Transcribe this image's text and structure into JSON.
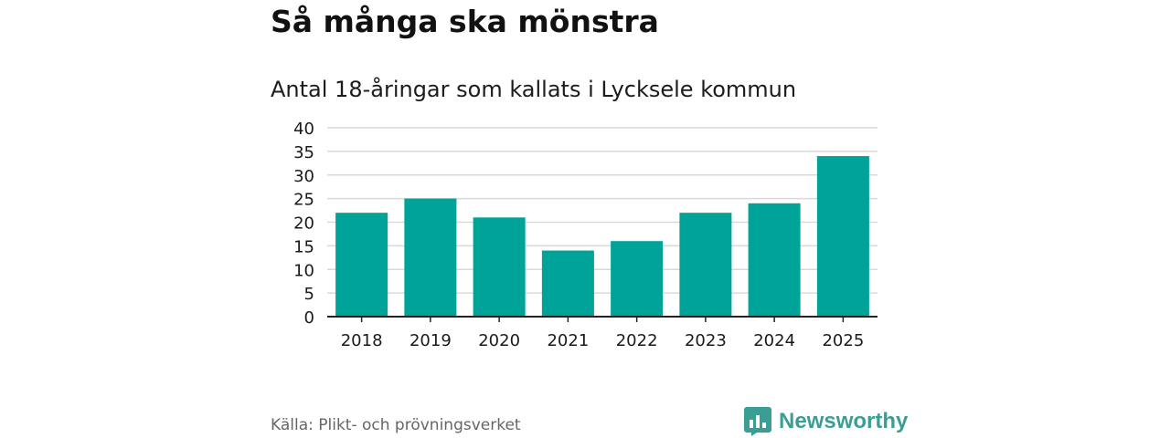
{
  "header": {
    "title": "Så många ska mönstra",
    "subtitle": "Antal 18-åringar som kallats i Lycksele kommun"
  },
  "footer": {
    "source": "Källa: Plikt- och prövningsverket",
    "brand": "Newsworthy"
  },
  "colors": {
    "bar": "#00a398",
    "grid": "#d9d9d9",
    "axis": "#222222",
    "brand": "#3a9e94"
  },
  "chart_data": {
    "type": "bar",
    "title": "Så många ska mönstra",
    "subtitle": "Antal 18-åringar som kallats i Lycksele kommun",
    "categories": [
      "2018",
      "2019",
      "2020",
      "2021",
      "2022",
      "2023",
      "2024",
      "2025"
    ],
    "values": [
      22,
      25,
      21,
      14,
      16,
      22,
      24,
      34
    ],
    "xlabel": "",
    "ylabel": "",
    "ylim": [
      0,
      40
    ],
    "yticks": [
      0,
      5,
      10,
      15,
      20,
      25,
      30,
      35,
      40
    ],
    "grid": true,
    "legend": "none"
  }
}
